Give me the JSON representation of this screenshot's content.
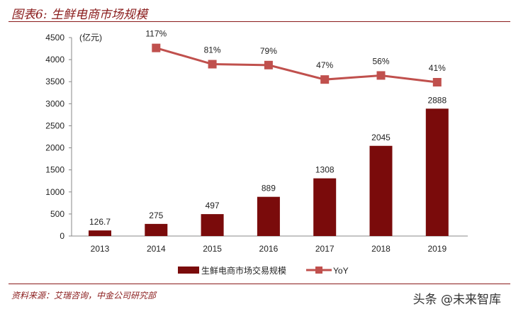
{
  "title": "图表6: 生鲜电商市场规模",
  "source": "资料来源：艾瑞咨询，中金公司研究部",
  "watermark": "头条 @未来智库",
  "chart_data": {
    "type": "bar",
    "title": "图表6: 生鲜电商市场规模",
    "unit_label": "(亿元)",
    "categories": [
      "2013",
      "2014",
      "2015",
      "2016",
      "2017",
      "2018",
      "2019"
    ],
    "ylim": [
      0,
      4500
    ],
    "yticks": [
      0,
      500,
      1000,
      1500,
      2000,
      2500,
      3000,
      3500,
      4000,
      4500
    ],
    "y2lim": [
      -300,
      140
    ],
    "y2_visible": false,
    "grid": false,
    "legend_placement": "bottom",
    "series": [
      {
        "name": "生鲜电商市场交易规模",
        "type": "bar",
        "color": "#7a0b0b",
        "values": [
          126.7,
          275,
          497,
          889,
          1308,
          2045,
          2888
        ],
        "labels": [
          "126.7",
          "275",
          "497",
          "889",
          "1308",
          "2045",
          "2888"
        ]
      },
      {
        "name": "YoY",
        "type": "line",
        "axis": "secondary",
        "color": "#c0504d",
        "values": [
          null,
          117,
          81,
          79,
          47,
          56,
          41
        ],
        "labels": [
          "",
          "117%",
          "81%",
          "79%",
          "47%",
          "56%",
          "41%"
        ]
      }
    ]
  }
}
